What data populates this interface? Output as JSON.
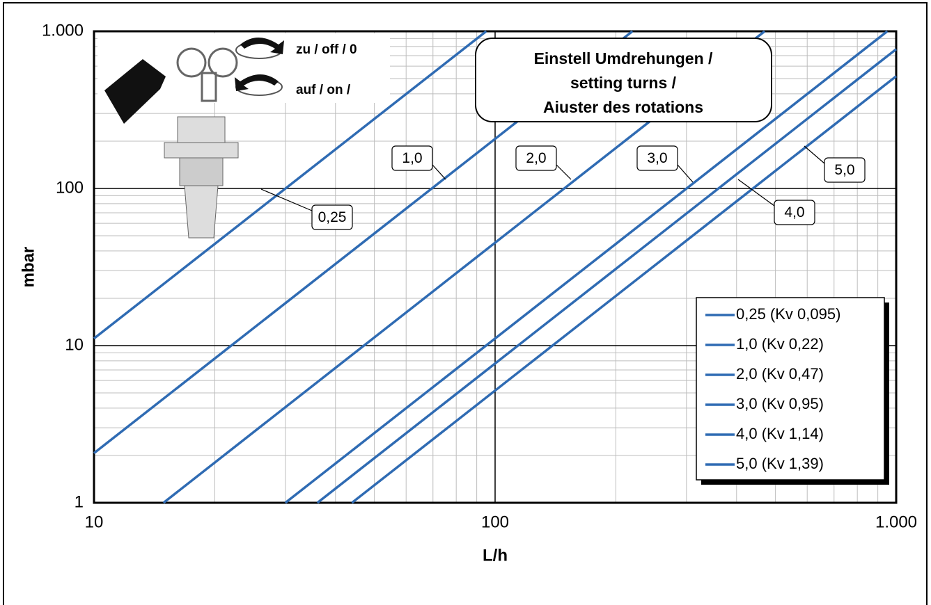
{
  "chart_data": {
    "type": "line",
    "xlabel": "L/h",
    "ylabel": "mbar",
    "log_x": true,
    "log_y": true,
    "grid": true,
    "legend_position": "lower right",
    "xlim": [
      10,
      1000
    ],
    "ylim": [
      1,
      1000
    ],
    "xticks": [
      10,
      100,
      {
        "value": 1000,
        "label": "1.000"
      }
    ],
    "yticks": [
      1,
      10,
      100,
      {
        "value": 1000,
        "label": "1.000"
      }
    ],
    "title": [
      "Einstell Umdrehungen /",
      "setting turns /",
      "Aiuster des rotations"
    ],
    "icon_labels": [
      "zu / off / 0",
      "auf / on /"
    ],
    "annotations": [
      "0,25",
      "1,0",
      "2,0",
      "3,0",
      "4,0",
      "5,0"
    ],
    "series": [
      {
        "name": "0,25 (Kv 0,095)",
        "color": "#2f6bb3",
        "x": [
          10,
          95
        ],
        "values": [
          11.1,
          1000
        ]
      },
      {
        "name": "1,0 (Kv 0,22)",
        "color": "#2f6bb3",
        "x": [
          10,
          220
        ],
        "values": [
          2.07,
          1000
        ]
      },
      {
        "name": "2,0 (Kv 0,47)",
        "color": "#2f6bb3",
        "x": [
          14.9,
          470
        ],
        "values": [
          1,
          1000
        ]
      },
      {
        "name": "3,0 (Kv 0,95)",
        "color": "#2f6bb3",
        "x": [
          30,
          950
        ],
        "values": [
          1,
          1000
        ]
      },
      {
        "name": "4,0 (Kv 1,14)",
        "color": "#2f6bb3",
        "x": [
          36.05,
          1000
        ],
        "values": [
          1,
          769.5
        ]
      },
      {
        "name": "5,0 (Kv 1,39)",
        "color": "#2f6bb3",
        "x": [
          43.96,
          1000
        ],
        "values": [
          1,
          517.6
        ]
      }
    ]
  }
}
